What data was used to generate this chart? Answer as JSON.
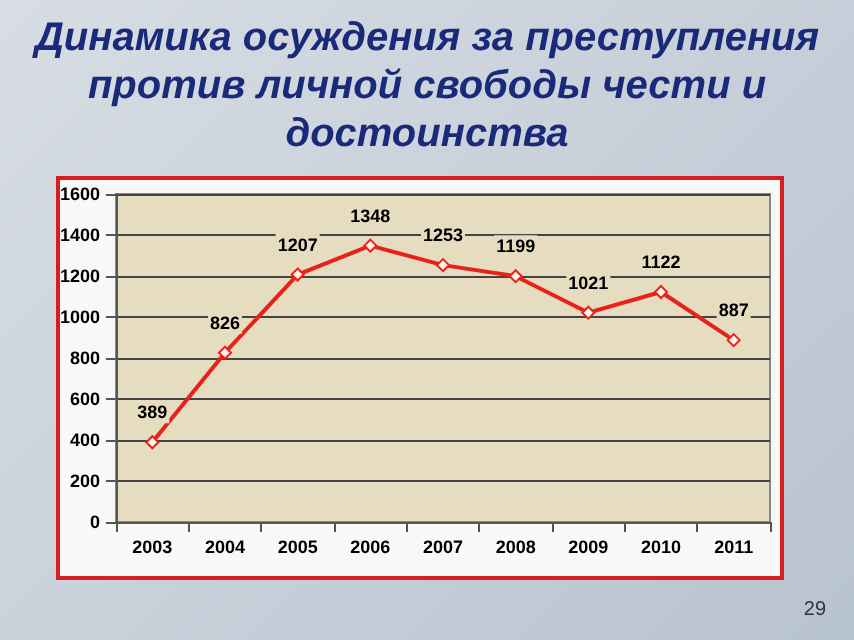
{
  "chart_data": {
    "type": "line",
    "title": "Динамика осуждения за преступления\nпротив личной свободы чести и\nдостоинства",
    "categories": [
      "2003",
      "2004",
      "2005",
      "2006",
      "2007",
      "2008",
      "2009",
      "2010",
      "2011"
    ],
    "series": [
      {
        "color": "#e8221b",
        "values": [
          389,
          826,
          1207,
          1348,
          1253,
          1199,
          1021,
          1122,
          887
        ]
      }
    ],
    "ylim": [
      0,
      1600
    ],
    "yticks": [
      0,
      200,
      400,
      600,
      800,
      1000,
      1200,
      1400,
      1600
    ],
    "grid": "y",
    "marker": "diamond",
    "line_style": "solid",
    "data_labels": true,
    "annotations": [
      "29"
    ]
  }
}
